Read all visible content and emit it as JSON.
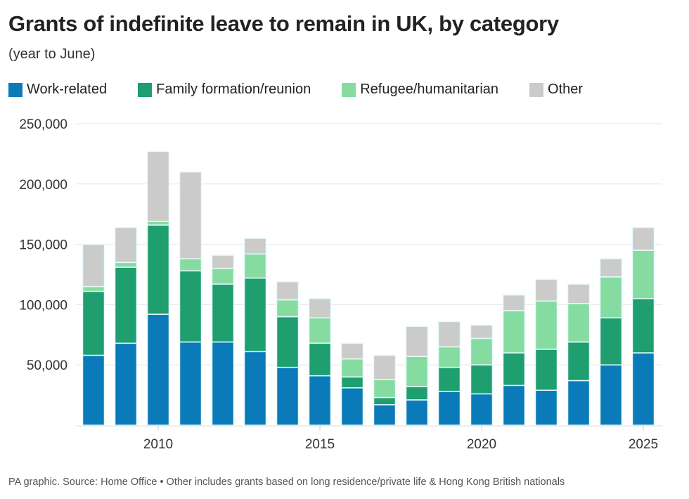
{
  "title": "Grants of indefinite leave to remain in UK, by category",
  "subtitle": "(year to June)",
  "footer": "PA graphic. Source: Home Office • Other includes grants based on long residence/private life & Hong Kong British nationals",
  "chart_data": {
    "type": "bar",
    "stacked": true,
    "title": "Grants of indefinite leave to remain in UK, by category",
    "subtitle": "(year to June)",
    "xlabel": "",
    "ylabel": "",
    "ylim": [
      0,
      250000
    ],
    "yticks": [
      "50,000",
      "100,000",
      "150,000",
      "200,000",
      "250,000"
    ],
    "ytick_values": [
      50000,
      100000,
      150000,
      200000,
      250000
    ],
    "xticks": [
      "2010",
      "2015",
      "2020",
      "2025"
    ],
    "grid": true,
    "legend": "top",
    "categories": [
      2008,
      2009,
      2010,
      2011,
      2012,
      2013,
      2014,
      2015,
      2016,
      2017,
      2018,
      2019,
      2020,
      2021,
      2022,
      2023,
      2024,
      2025
    ],
    "series": [
      {
        "name": "Work-related",
        "color": "#0a7bb8",
        "values": [
          58000,
          68000,
          92000,
          69000,
          69000,
          61000,
          48000,
          41000,
          31000,
          17000,
          21000,
          28000,
          26000,
          33000,
          29000,
          37000,
          50000,
          60000
        ]
      },
      {
        "name": "Family formation/reunion",
        "color": "#1f9e70",
        "values": [
          53000,
          63000,
          74000,
          59000,
          48000,
          61000,
          42000,
          27000,
          9000,
          6000,
          11000,
          20000,
          24000,
          27000,
          34000,
          32000,
          39000,
          45000
        ]
      },
      {
        "name": "Refugee/humanitarian",
        "color": "#86dca0",
        "values": [
          4000,
          4000,
          3000,
          10000,
          13000,
          20000,
          14000,
          21000,
          15000,
          15000,
          25000,
          17000,
          22000,
          35000,
          40000,
          32000,
          34000,
          40000
        ]
      },
      {
        "name": "Other",
        "color": "#cbcbc9",
        "values": [
          35000,
          29000,
          58000,
          72000,
          11000,
          13000,
          15000,
          16000,
          13000,
          20000,
          25000,
          21000,
          11000,
          13000,
          18000,
          16000,
          15000,
          19000
        ]
      }
    ]
  }
}
